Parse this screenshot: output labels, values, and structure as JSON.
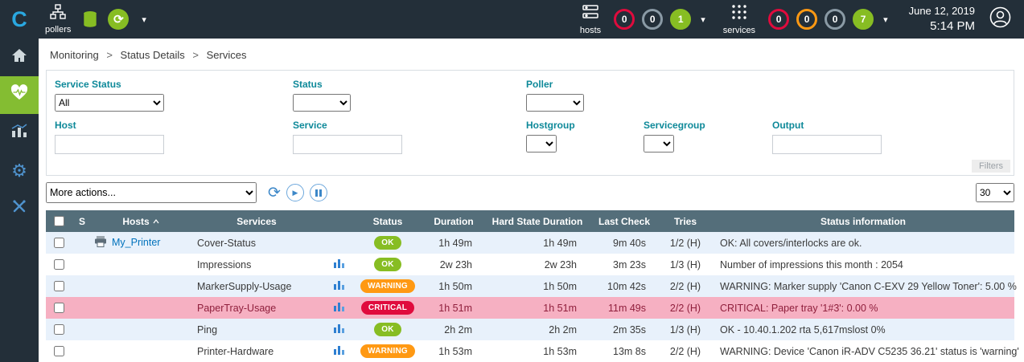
{
  "colors": {
    "header_bg": "#232f39",
    "accent_green": "#84bd32",
    "ok": "#87bd23",
    "warning": "#ff9913",
    "critical": "#e00b3d",
    "table_header_bg": "#546e7a",
    "row_alt": "#e8f1fb",
    "row_critical": "#f6b0c2",
    "row_critical_text": "#8f1f3c",
    "link": "#0072bc",
    "filter_label": "#0e8999",
    "icon_blue": "#4f93ce"
  },
  "header": {
    "pollers_label": "pollers",
    "hosts_label": "hosts",
    "services_label": "services",
    "date": "June 12, 2019",
    "time": "5:14 PM",
    "host_counters": [
      {
        "value": "0",
        "state": "critical"
      },
      {
        "value": "0",
        "state": "neutral"
      },
      {
        "value": "1",
        "state": "ok-filled"
      }
    ],
    "service_counters": [
      {
        "value": "0",
        "state": "critical"
      },
      {
        "value": "0",
        "state": "warning"
      },
      {
        "value": "0",
        "state": "neutral"
      },
      {
        "value": "7",
        "state": "ok-filled"
      }
    ]
  },
  "breadcrumb": {
    "separator": ">",
    "items": [
      "Monitoring",
      "Status Details",
      "Services"
    ]
  },
  "filters": {
    "panel_label": "Filters",
    "service_status": {
      "label": "Service Status",
      "value": "All"
    },
    "status": {
      "label": "Status",
      "value": ""
    },
    "poller": {
      "label": "Poller",
      "value": ""
    },
    "host": {
      "label": "Host",
      "value": ""
    },
    "service": {
      "label": "Service",
      "value": ""
    },
    "hostgroup": {
      "label": "Hostgroup",
      "value": ""
    },
    "servicegroup": {
      "label": "Servicegroup",
      "value": ""
    },
    "output": {
      "label": "Output",
      "value": ""
    }
  },
  "toolbar": {
    "more_actions_label": "More actions...",
    "page_size": "30"
  },
  "table": {
    "columns": [
      "S",
      "Hosts",
      "Services",
      "Status",
      "Duration",
      "Hard State Duration",
      "Last Check",
      "Tries",
      "Status information"
    ],
    "rows": [
      {
        "host": "My_Printer",
        "service": "Cover-Status",
        "status": "OK",
        "duration": "1h 49m",
        "hard_duration": "1h 49m",
        "last_check": "9m 40s",
        "tries": "1/2 (H)",
        "info": "OK: All covers/interlocks are ok.",
        "style": "alt",
        "graph": false
      },
      {
        "host": "",
        "service": "Impressions",
        "status": "OK",
        "duration": "2w 23h",
        "hard_duration": "2w 23h",
        "last_check": "3m 23s",
        "tries": "1/3 (H)",
        "info": "Number of impressions this month : 2054",
        "style": "plain",
        "graph": true
      },
      {
        "host": "",
        "service": "MarkerSupply-Usage",
        "status": "WARNING",
        "duration": "1h 50m",
        "hard_duration": "1h 50m",
        "last_check": "10m 42s",
        "tries": "2/2 (H)",
        "info": "WARNING: Marker supply 'Canon C-EXV 29 Yellow Toner': 5.00 %",
        "style": "alt",
        "graph": true
      },
      {
        "host": "",
        "service": "PaperTray-Usage",
        "status": "CRITICAL",
        "duration": "1h 51m",
        "hard_duration": "1h 51m",
        "last_check": "11m 49s",
        "tries": "2/2 (H)",
        "info": "CRITICAL: Paper tray '1#3': 0.00 %",
        "style": "critical",
        "graph": true
      },
      {
        "host": "",
        "service": "Ping",
        "status": "OK",
        "duration": "2h 2m",
        "hard_duration": "2h 2m",
        "last_check": "2m 35s",
        "tries": "1/3 (H)",
        "info": "OK - 10.40.1.202 rta 5,617mslost 0%",
        "style": "alt",
        "graph": true
      },
      {
        "host": "",
        "service": "Printer-Hardware",
        "status": "WARNING",
        "duration": "1h 53m",
        "hard_duration": "1h 53m",
        "last_check": "13m 8s",
        "tries": "2/2 (H)",
        "info": "WARNING: Device 'Canon iR-ADV C5235 36.21' status is 'warning'",
        "style": "plain",
        "graph": true
      }
    ]
  }
}
